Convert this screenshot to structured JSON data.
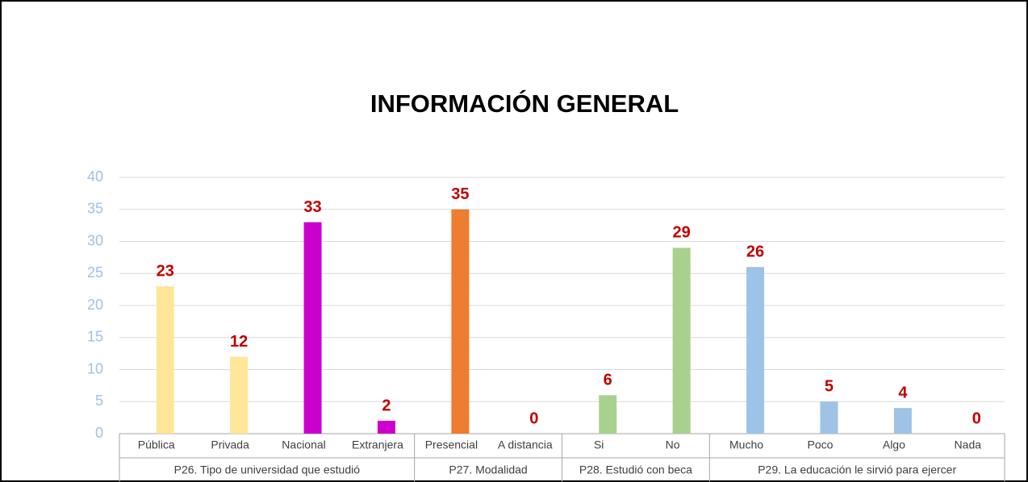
{
  "chart_data": {
    "type": "bar",
    "title": "INFORMACIÓN GENERAL",
    "groups": [
      {
        "name": "P26. Tipo de universidad que estudió",
        "categories": [
          "Pública",
          "Privada",
          "Nacional",
          "Extranjera"
        ],
        "values": [
          23,
          12,
          33,
          2
        ],
        "colors": [
          "#FFE699",
          "#FFE699",
          "#CC00CC",
          "#CC00CC"
        ]
      },
      {
        "name": "P27. Modalidad",
        "categories": [
          "Presencial",
          "A distancia"
        ],
        "values": [
          35,
          0
        ],
        "colors": [
          "#ED7D31",
          "#ED7D31"
        ]
      },
      {
        "name": "P28. Estudió con beca",
        "categories": [
          "Si",
          "No"
        ],
        "values": [
          6,
          29
        ],
        "colors": [
          "#A9D18E",
          "#A9D18E"
        ]
      },
      {
        "name": "P29. La educación le sirvió para ejercer",
        "categories": [
          "Mucho",
          "Poco",
          "Algo",
          "Nada"
        ],
        "values": [
          26,
          5,
          4,
          0
        ],
        "colors": [
          "#9DC3E6",
          "#9DC3E6",
          "#9DC3E6",
          "#9DC3E6"
        ]
      }
    ],
    "ylim": [
      0,
      40
    ],
    "yticks": [
      0,
      5,
      10,
      15,
      20,
      25,
      30,
      35,
      40
    ],
    "grid": true
  }
}
